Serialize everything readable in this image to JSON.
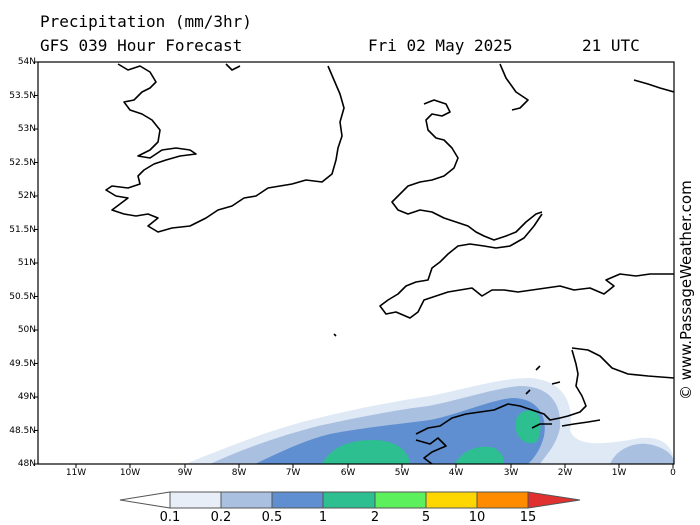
{
  "header": {
    "title": "Precipitation (mm/3hr)",
    "subtitle": "GFS 039 Hour Forecast",
    "date": "Fri 02 May 2025",
    "time": "21 UTC"
  },
  "credit": "© www.PassageWeather.com",
  "map": {
    "lat_labels": [
      "54N",
      "53.5N",
      "53N",
      "52.5N",
      "52N",
      "51.5N",
      "51N",
      "50.5N",
      "50N",
      "49.5N",
      "49N",
      "48.5N",
      "48N"
    ],
    "lon_labels": [
      "11W",
      "10W",
      "9W",
      "8W",
      "7W",
      "6W",
      "5W",
      "4W",
      "3W",
      "2W",
      "1W",
      "0"
    ],
    "colors": {
      "land_outline": "#000000",
      "precip_0_1": "#dfe9f5",
      "precip_0_2": "#a9c0e1",
      "precip_0_5": "#5f8fd0",
      "precip_1": "#2dbf8f",
      "precip_2": "#5df05d"
    }
  },
  "legend": {
    "labels": [
      "0.1",
      "0.2",
      "0.5",
      "1",
      "2",
      "5",
      "10",
      "15"
    ],
    "colors": [
      "#ffffff",
      "#e8eef8",
      "#a9c0e1",
      "#5f8fd0",
      "#2dbf8f",
      "#5df05d",
      "#ffd700",
      "#ff8c00",
      "#e03030"
    ]
  }
}
